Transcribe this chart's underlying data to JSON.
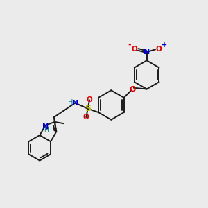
{
  "bg_color": "#ebebeb",
  "bond_color": "#1a1a1a",
  "bond_width": 1.4,
  "N_color": "#0000cc",
  "O_color": "#dd0000",
  "S_color": "#bbbb00",
  "H_color": "#008080",
  "figsize": [
    3.0,
    3.0
  ],
  "dpi": 100,
  "xlim": [
    0,
    10
  ],
  "ylim": [
    0,
    10
  ]
}
